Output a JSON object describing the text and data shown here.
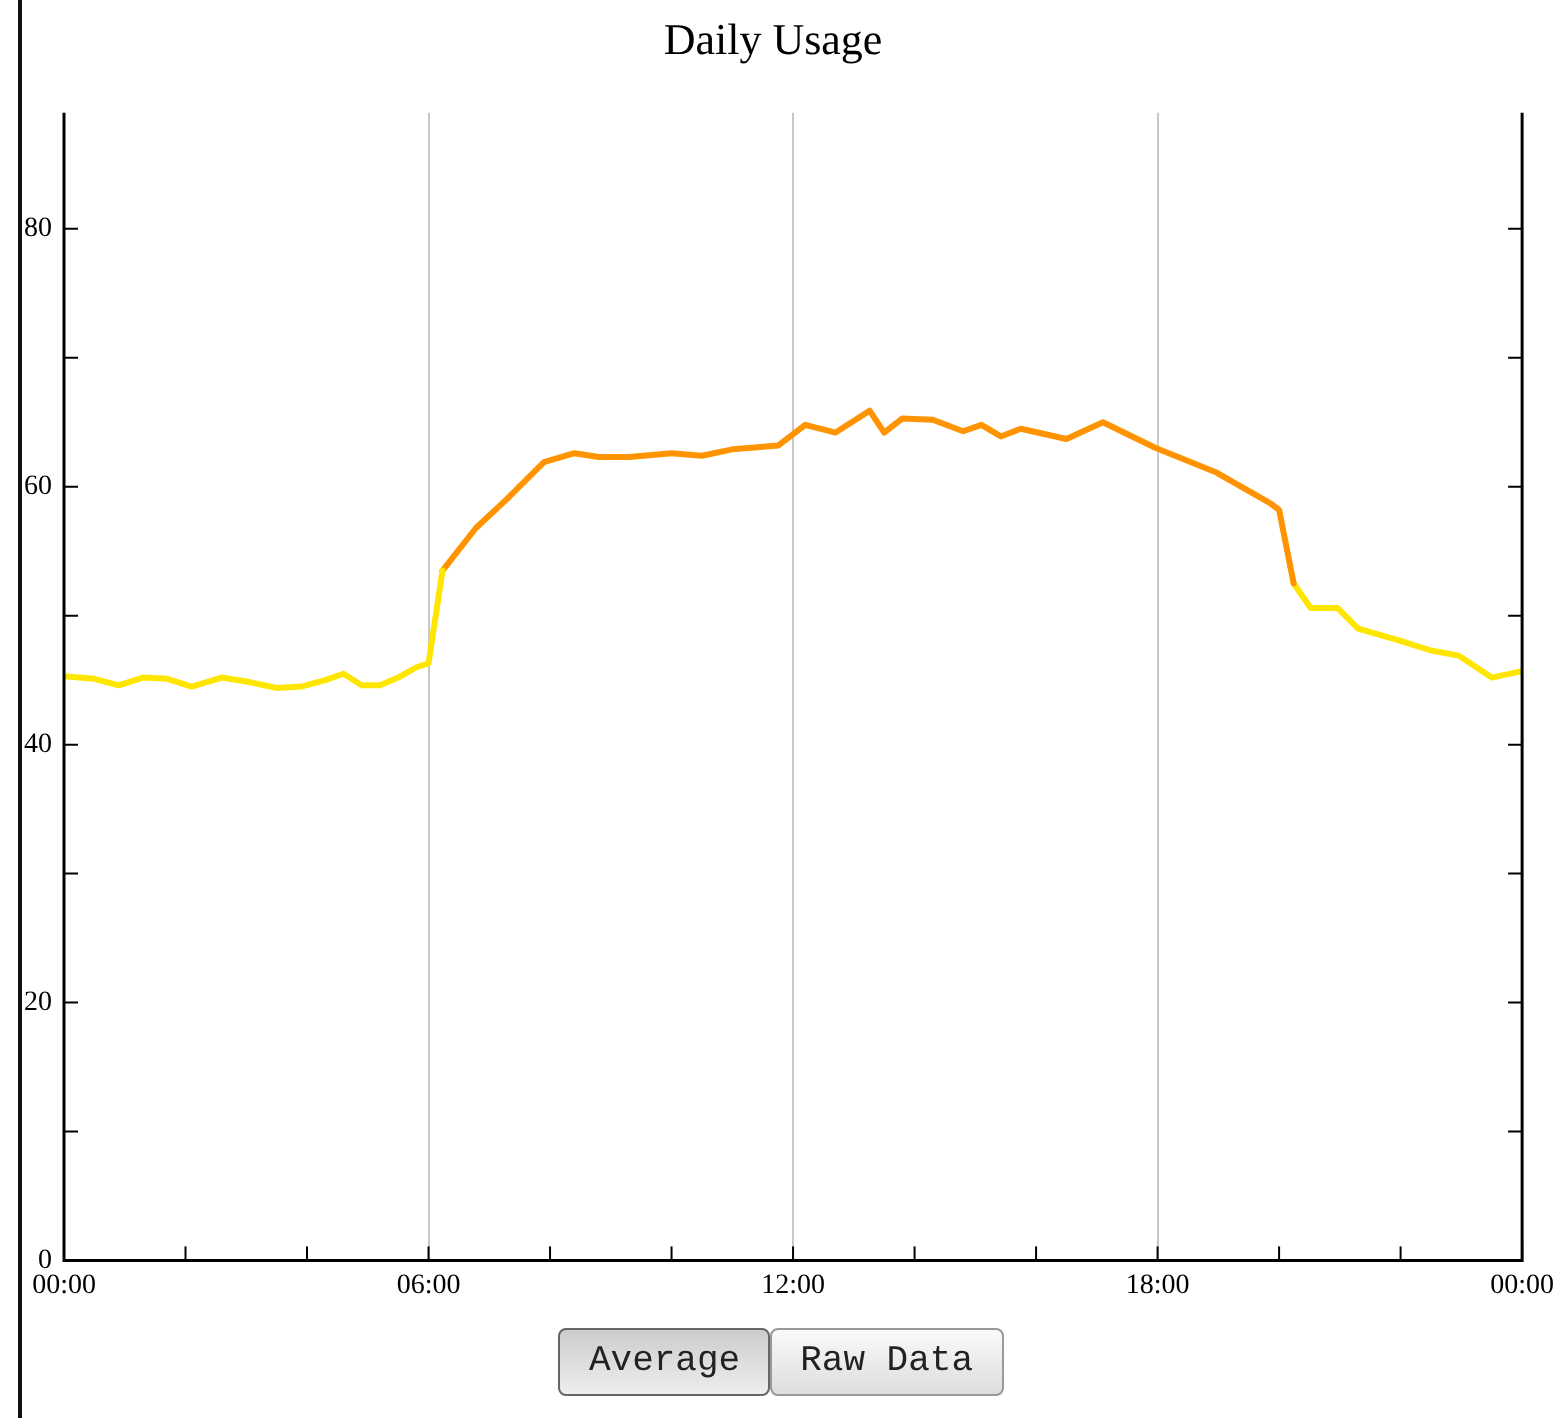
{
  "chart_data": {
    "type": "line",
    "title": "Daily Usage",
    "series": [
      {
        "color": "#ffe600",
        "x": [
          0,
          0.5,
          0.9,
          1.3,
          1.7,
          2.1,
          2.6,
          3.0,
          3.5,
          3.9,
          4.3,
          4.6,
          4.9,
          5.2,
          5.5,
          5.8,
          6.0,
          6.23
        ],
        "values": [
          45.3,
          45.1,
          44.6,
          45.2,
          45.1,
          44.5,
          45.2,
          44.9,
          44.4,
          44.5,
          45.0,
          45.5,
          44.6,
          44.6,
          45.2,
          46.0,
          46.3,
          53.5
        ]
      },
      {
        "color": "#ff9400",
        "x": [
          6.23,
          6.78,
          7.28,
          7.9,
          8.4,
          8.8,
          9.3,
          10.0,
          10.5,
          11.0,
          11.76,
          12.2,
          12.7,
          13.26,
          13.5,
          13.8,
          14.3,
          14.8,
          15.1,
          15.42,
          15.75,
          16.5,
          17.1,
          17.97,
          18.97,
          19.86,
          20.0,
          20.24
        ],
        "values": [
          53.5,
          56.8,
          59.0,
          61.9,
          62.6,
          62.3,
          62.3,
          62.6,
          62.4,
          62.9,
          63.2,
          64.8,
          64.2,
          65.9,
          64.2,
          65.3,
          65.2,
          64.3,
          64.8,
          63.9,
          64.5,
          63.7,
          65.0,
          63.0,
          61.1,
          58.7,
          58.2,
          52.5
        ]
      },
      {
        "color": "#ffe600",
        "x": [
          20.24,
          20.52,
          20.96,
          21.3,
          21.96,
          22.5,
          22.96,
          23.5,
          24.0
        ],
        "values": [
          52.5,
          50.6,
          50.6,
          49.0,
          48.1,
          47.3,
          46.9,
          45.2,
          45.7
        ]
      }
    ],
    "xlim": [
      0,
      24
    ],
    "xticks": [
      {
        "value": 0,
        "label": "00:00"
      },
      {
        "value": 2,
        "label": null
      },
      {
        "value": 4,
        "label": null
      },
      {
        "value": 6,
        "label": "06:00"
      },
      {
        "value": 8,
        "label": null
      },
      {
        "value": 10,
        "label": null
      },
      {
        "value": 12,
        "label": "12:00"
      },
      {
        "value": 14,
        "label": null
      },
      {
        "value": 16,
        "label": null
      },
      {
        "value": 18,
        "label": "18:00"
      },
      {
        "value": 20,
        "label": null
      },
      {
        "value": 22,
        "label": null
      },
      {
        "value": 24,
        "label": "00:00"
      }
    ],
    "ylim": [
      0,
      89
    ],
    "yticks": [
      0,
      {
        "value": 10,
        "label": null
      },
      20,
      {
        "value": 30,
        "label": null
      },
      40,
      {
        "value": 50,
        "label": null
      },
      60,
      {
        "value": 70,
        "label": null
      },
      80
    ],
    "grid": "x",
    "legend": false,
    "marker": "none",
    "line_style": "solid",
    "annotations": [
      "Average",
      "Raw Data"
    ]
  }
}
